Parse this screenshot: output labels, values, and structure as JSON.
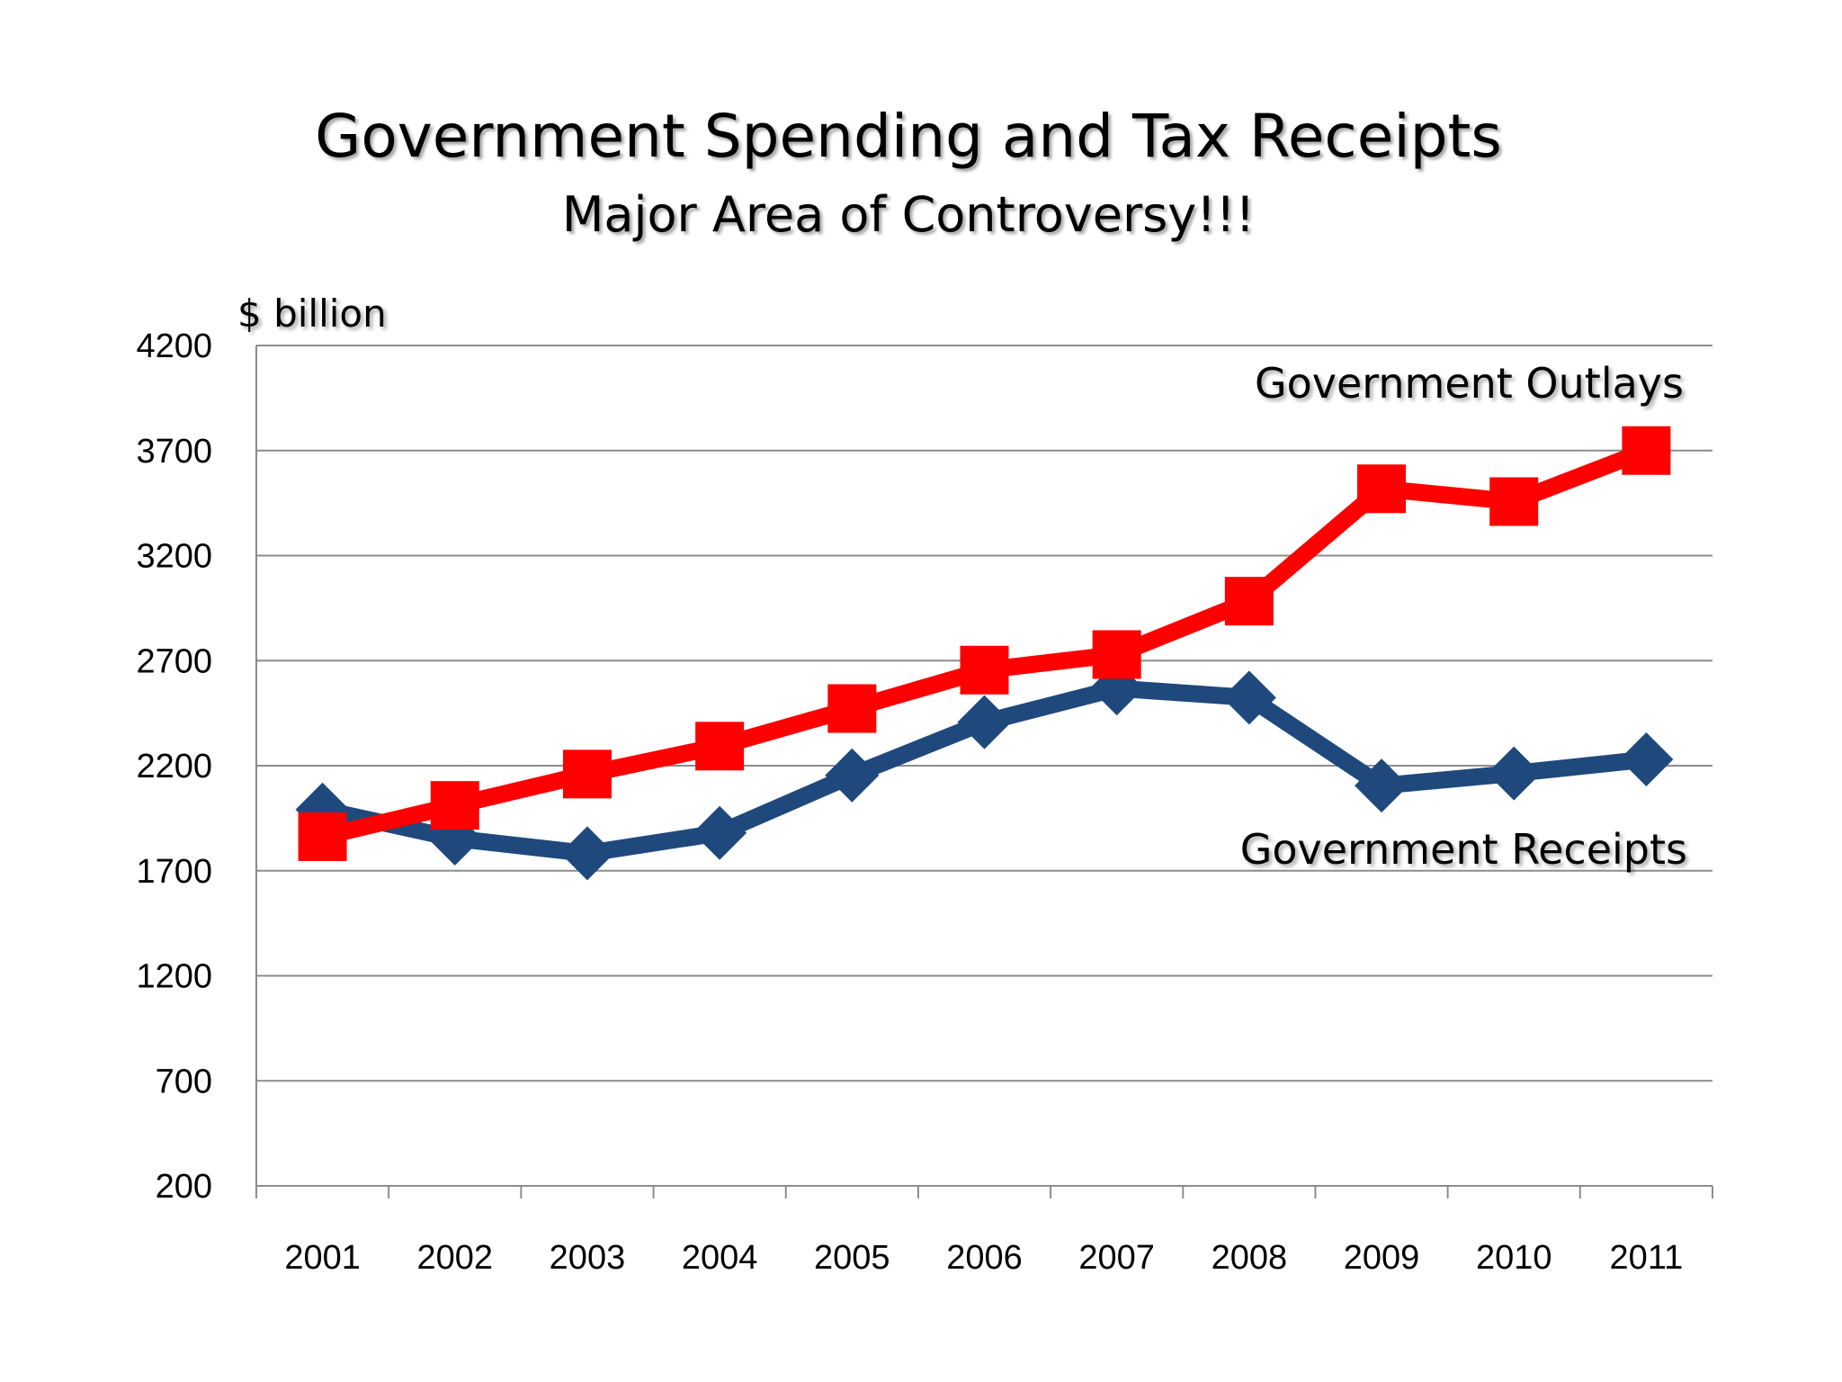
{
  "chart_data": {
    "type": "line",
    "title": "Government Spending and Tax Receipts",
    "subtitle": "Major Area of Controversy!!!",
    "ylabel": "$ billion",
    "xlabel": "",
    "categories": [
      "2001",
      "2002",
      "2003",
      "2004",
      "2005",
      "2006",
      "2007",
      "2008",
      "2009",
      "2010",
      "2011"
    ],
    "ylim": [
      200,
      4200
    ],
    "yticks": [
      200,
      700,
      1200,
      1700,
      2200,
      2700,
      3200,
      3700,
      4200
    ],
    "grid": true,
    "legend": "none",
    "series": [
      {
        "name": "Government Outlays",
        "color": "#ff0000",
        "marker": "square",
        "values": [
          1862,
          2011,
          2160,
          2293,
          2472,
          2655,
          2729,
          2983,
          3518,
          3457,
          3700
        ]
      },
      {
        "name": "Government Receipts",
        "color": "#1f497d",
        "marker": "diamond",
        "values": [
          1991,
          1853,
          1783,
          1880,
          2154,
          2407,
          2568,
          2524,
          2105,
          2163,
          2230
        ]
      }
    ]
  }
}
